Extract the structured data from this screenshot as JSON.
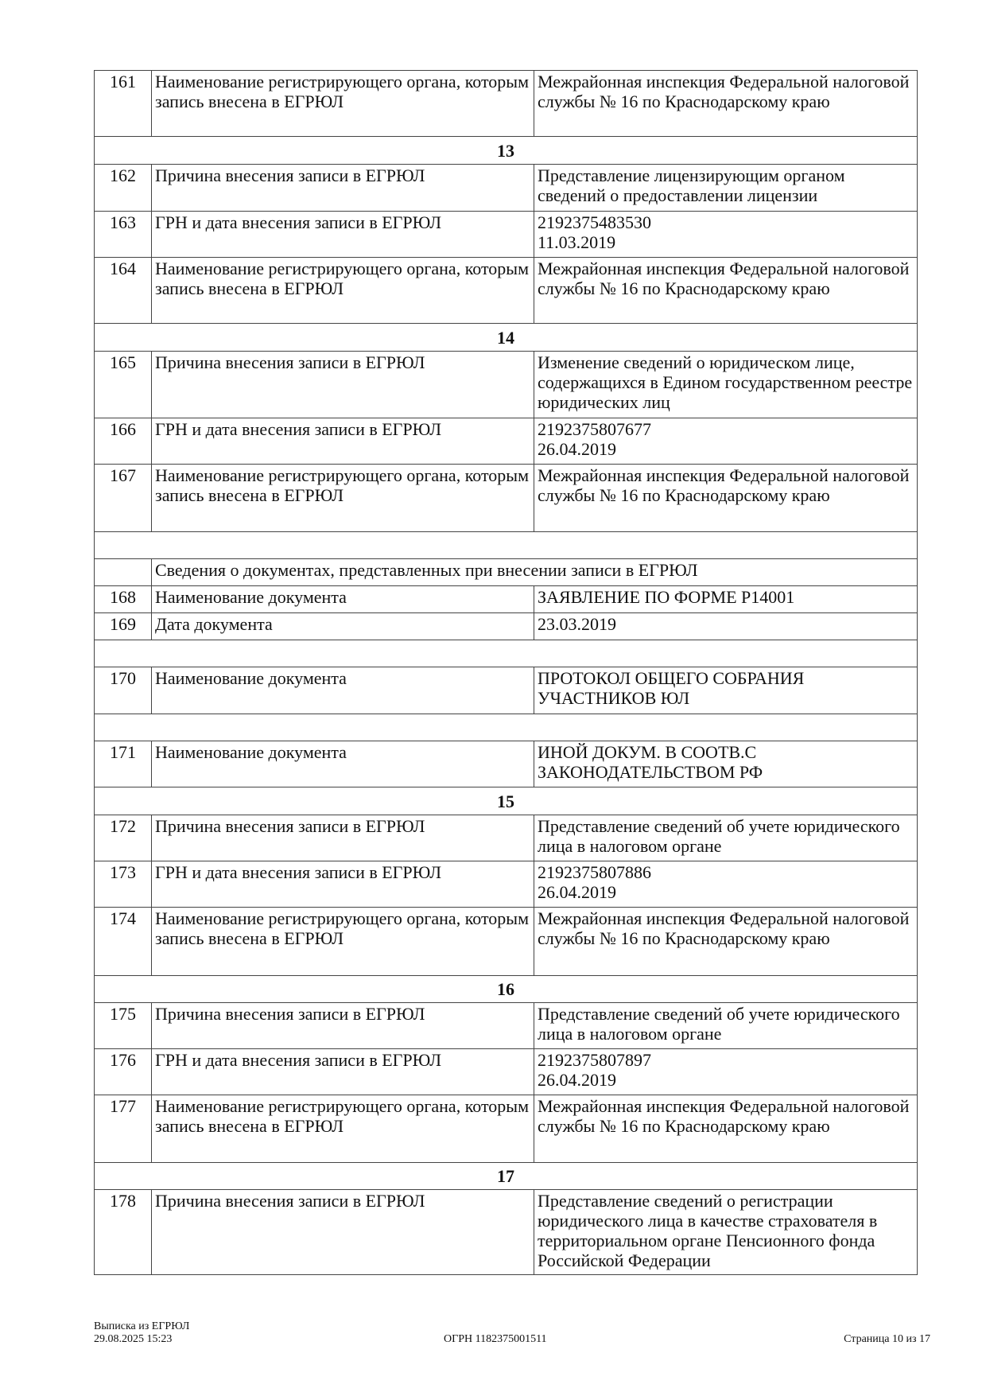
{
  "rows": [
    {
      "type": "row",
      "num": "161",
      "label": "Наименование регистрирующего органа, которым запись внесена в ЕГРЮЛ",
      "value": "Межрайонная инспекция Федеральной налоговой службы № 16 по Краснодарскому краю",
      "h": 83
    },
    {
      "type": "section",
      "text": "13",
      "h": 35
    },
    {
      "type": "row",
      "num": "162",
      "label": "Причина внесения записи в ЕГРЮЛ",
      "value": "Представление лицензирующим органом сведений о предоставлении лицензии",
      "h": 59
    },
    {
      "type": "row",
      "num": "163",
      "label": "ГРН и дата внесения записи в ЕГРЮЛ",
      "value": "2192375483530\n11.03.2019",
      "h": 58
    },
    {
      "type": "row",
      "num": "164",
      "label": "Наименование регистрирующего органа, которым запись внесена в ЕГРЮЛ",
      "value": "Межрайонная инспекция Федеральной налоговой службы № 16 по Краснодарскому краю",
      "h": 83
    },
    {
      "type": "section",
      "text": "14",
      "h": 35
    },
    {
      "type": "row",
      "num": "165",
      "label": "Причина внесения записи в ЕГРЮЛ",
      "value": "Изменение сведений о юридическом лице, содержащихся в Едином государственном реестре юридических лиц",
      "h": 84
    },
    {
      "type": "row",
      "num": "166",
      "label": "ГРН и дата внесения записи в ЕГРЮЛ",
      "value": "2192375807677\n26.04.2019",
      "h": 58
    },
    {
      "type": "row",
      "num": "167",
      "label": "Наименование регистрирующего органа, которым запись внесена в ЕГРЮЛ",
      "value": "Межрайонная инспекция Федеральной налоговой службы № 16 по Краснодарскому краю",
      "h": 85
    },
    {
      "type": "empty",
      "h": 34
    },
    {
      "type": "span",
      "text": "Сведения о документах, представленных при внесении записи в ЕГРЮЛ",
      "h": 34
    },
    {
      "type": "row",
      "num": "168",
      "label": "Наименование документа",
      "value": "ЗАЯВЛЕНИЕ ПО ФОРМЕ Р14001",
      "h": 34
    },
    {
      "type": "row",
      "num": "169",
      "label": "Дата документа",
      "value": "23.03.2019",
      "h": 34
    },
    {
      "type": "empty",
      "h": 34
    },
    {
      "type": "row",
      "num": "170",
      "label": "Наименование документа",
      "value": "ПРОТОКОЛ ОБЩЕГО СОБРАНИЯ УЧАСТНИКОВ ЮЛ",
      "h": 59
    },
    {
      "type": "empty",
      "h": 34
    },
    {
      "type": "row",
      "num": "171",
      "label": "Наименование документа",
      "value": "ИНОЙ ДОКУМ. В СООТВ.С ЗАКОНОДАТЕЛЬСТВОМ РФ",
      "h": 58
    },
    {
      "type": "section",
      "text": "15",
      "h": 35
    },
    {
      "type": "row",
      "num": "172",
      "label": "Причина внесения записи в ЕГРЮЛ",
      "value": "Представление сведений об учете юридического лица в налоговом органе",
      "h": 58
    },
    {
      "type": "row",
      "num": "173",
      "label": "ГРН и дата внесения записи в ЕГРЮЛ",
      "value": "2192375807886\n26.04.2019",
      "h": 58
    },
    {
      "type": "row",
      "num": "174",
      "label": "Наименование регистрирующего органа, которым запись внесена в ЕГРЮЛ",
      "value": "Межрайонная инспекция Федеральной налоговой службы № 16 по Краснодарскому краю",
      "h": 86
    },
    {
      "type": "section",
      "text": "16",
      "h": 34
    },
    {
      "type": "row",
      "num": "175",
      "label": "Причина внесения записи в ЕГРЮЛ",
      "value": "Представление сведений об учете юридического лица в налоговом органе",
      "h": 58
    },
    {
      "type": "row",
      "num": "176",
      "label": "ГРН и дата внесения записи в ЕГРЮЛ",
      "value": "2192375807897\n26.04.2019",
      "h": 58
    },
    {
      "type": "row",
      "num": "177",
      "label": "Наименование регистрирующего органа, которым запись внесена в ЕГРЮЛ",
      "value": "Межрайонная инспекция Федеральной налоговой службы № 16 по Краснодарскому краю",
      "h": 85
    },
    {
      "type": "section",
      "text": "17",
      "h": 34
    },
    {
      "type": "row",
      "num": "178",
      "label": "Причина внесения записи в ЕГРЮЛ",
      "value": "Представление сведений о регистрации юридического лица в качестве страхователя в территориальном органе Пенсионного фонда Российской Федерации",
      "h": 107
    }
  ],
  "footer": {
    "doc_title": "Выписка из ЕГРЮЛ",
    "datetime": "29.08.2025 15:23",
    "ogrn": "ОГРН 1182375001511",
    "page": "Страница 10 из 17"
  }
}
